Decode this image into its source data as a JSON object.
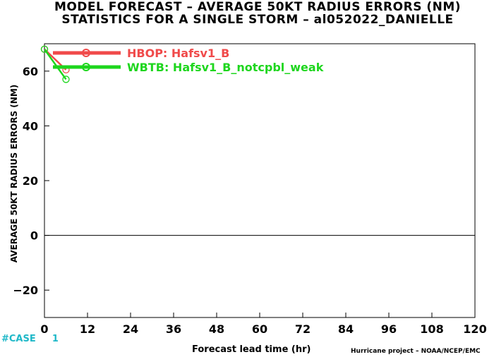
{
  "chart_data": {
    "type": "line",
    "title": "MODEL FORECAST – AVERAGE 50KT RADIUS ERRORS (NM)",
    "subtitle": "STATISTICS FOR A SINGLE STORM – al052022_DANIELLE",
    "xlabel": "Forecast lead time (hr)",
    "ylabel": "AVERAGE 50KT RADIUS ERRORS (NM)",
    "xlim": [
      0,
      120
    ],
    "ylim": [
      -30,
      70
    ],
    "xticks": [
      0,
      12,
      24,
      36,
      48,
      60,
      72,
      84,
      96,
      108,
      120
    ],
    "yticks": [
      -20,
      0,
      20,
      40,
      60
    ],
    "grid": false,
    "legend_position": "top-left",
    "series": [
      {
        "name": "HBOP: Hafsv1_B",
        "color": "#f04a4a",
        "x": [
          0,
          6
        ],
        "y": [
          68,
          60.5
        ]
      },
      {
        "name": "WBTB: Hafsv1_B_notcpbl_weak",
        "color": "#1ed61e",
        "x": [
          0,
          6
        ],
        "y": [
          68,
          57
        ]
      }
    ]
  },
  "footer": {
    "cases_label": "#CASE",
    "cases_value": "1",
    "credit": "Hurricane project – NOAA/NCEP/EMC"
  }
}
